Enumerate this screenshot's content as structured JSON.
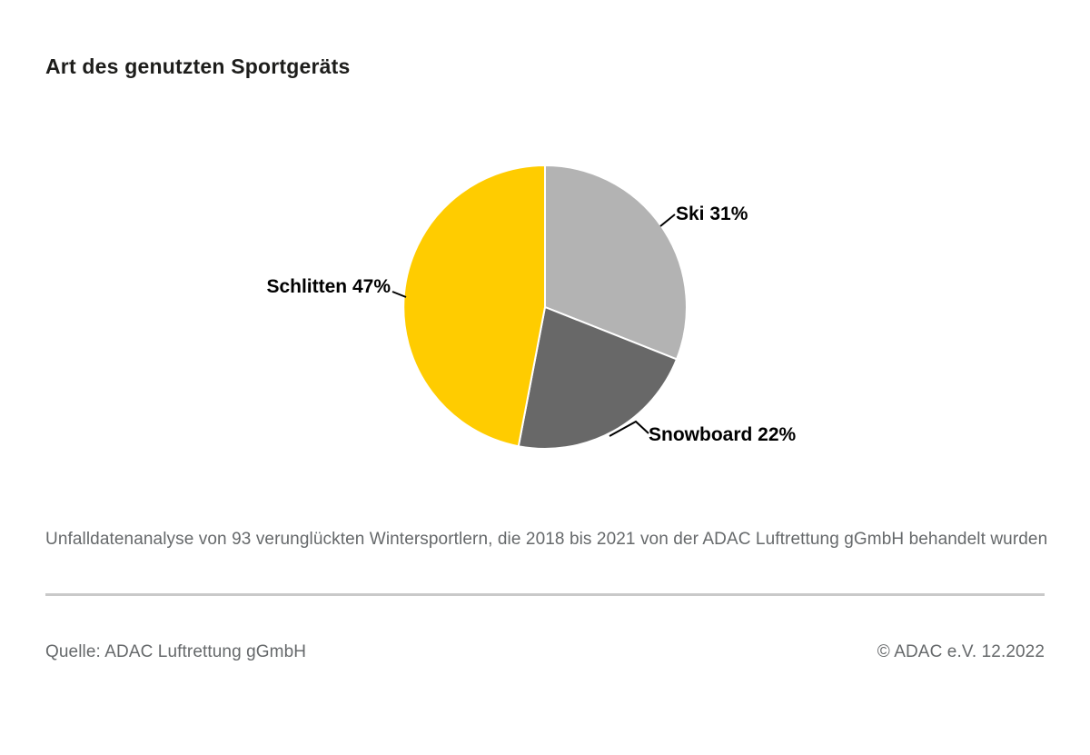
{
  "page": {
    "title": "Art des genutzten Sportgeräts",
    "caption": "Unfalldatenanalyse von 93 verunglückten Wintersportlern, die 2018 bis 2021 von der ADAC Luftrettung gGmbH behandelt wurden",
    "footer": {
      "source": "Quelle: ADAC Luftrettung gGmbH",
      "copyright": "© ADAC e.V. 12.2022"
    }
  },
  "chart_data": {
    "type": "pie",
    "title": "Art des genutzten Sportgeräts",
    "start_angle_deg": 0,
    "direction": "clockwise",
    "total": 100,
    "label_format": "{label} {value}%",
    "segments": [
      {
        "label": "Ski",
        "value": 31,
        "color": "#b3b3b3"
      },
      {
        "label": "Snowboard",
        "value": 22,
        "color": "#686868"
      },
      {
        "label": "Schlitten",
        "value": 47,
        "color": "#ffcc00"
      }
    ],
    "labels_visible": [
      "Ski 31%",
      "Snowboard 22%",
      "Schlitten 47%"
    ],
    "legend": "none",
    "slice_separator_color": "#ffffff"
  }
}
